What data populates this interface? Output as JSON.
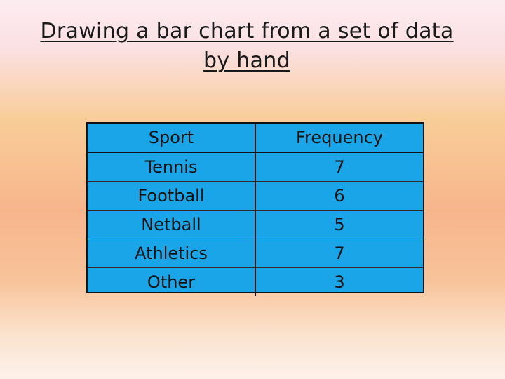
{
  "title": {
    "line1": "Drawing a bar chart from a set of data",
    "line2": "by hand"
  },
  "table": {
    "headers": [
      "Sport",
      "Frequency"
    ],
    "rows": [
      {
        "sport": "Tennis",
        "frequency": "7"
      },
      {
        "sport": "Football",
        "frequency": "6"
      },
      {
        "sport": "Netball",
        "frequency": "5"
      },
      {
        "sport": "Athletics",
        "frequency": "7"
      },
      {
        "sport": "Other",
        "frequency": "3"
      }
    ]
  },
  "colors": {
    "table_fill": "#1aa5e8",
    "border": "#111111"
  }
}
